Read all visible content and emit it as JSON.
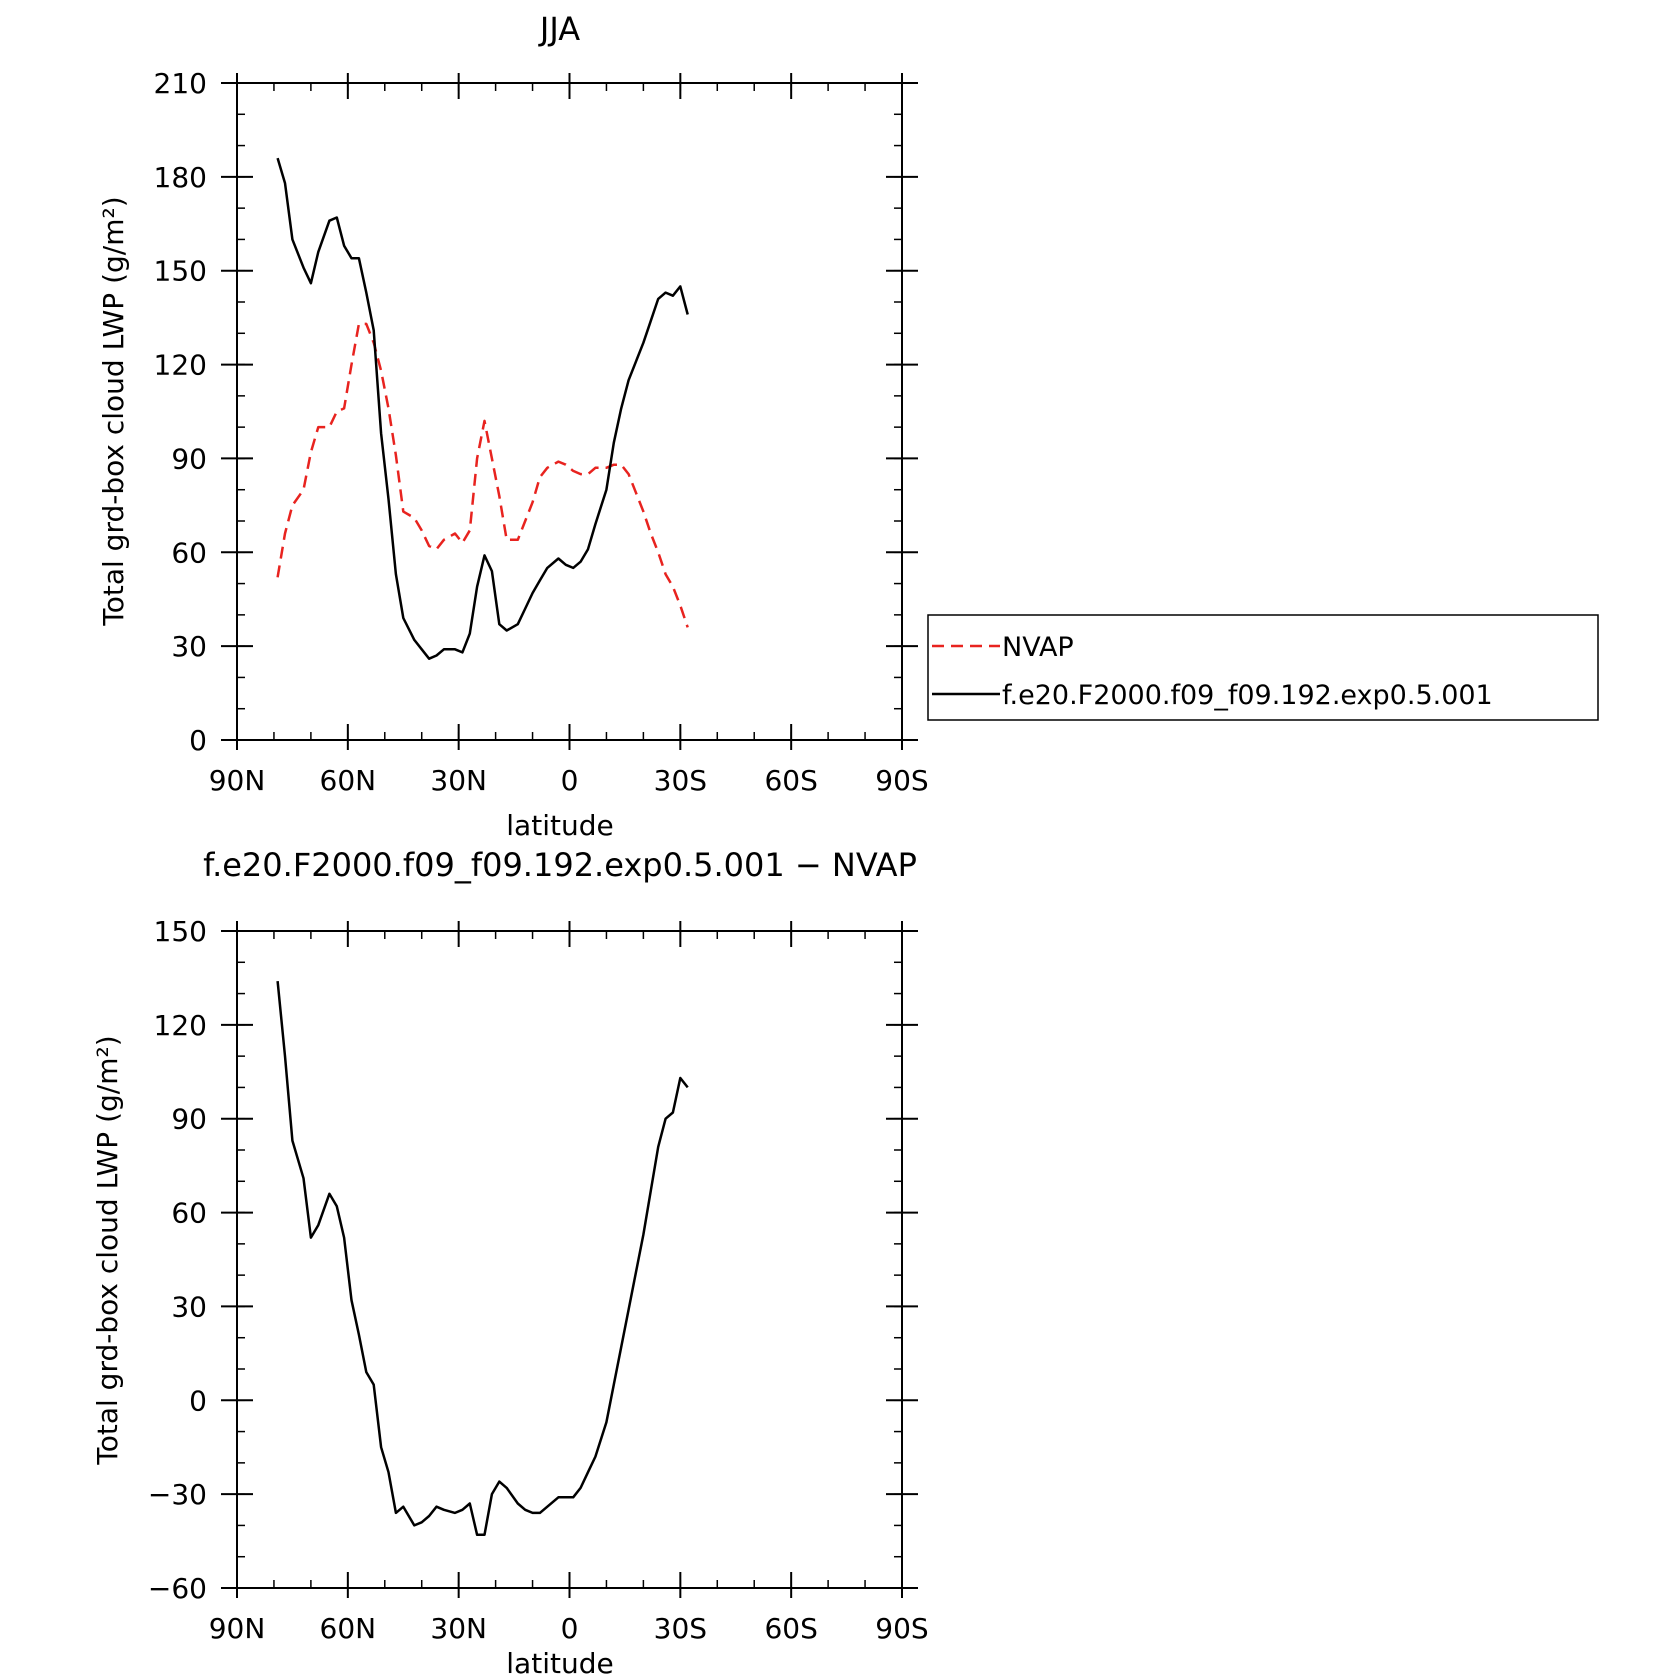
{
  "chart_data": [
    {
      "type": "line",
      "title": "JJA",
      "xlabel": "latitude",
      "ylabel": "Total grd-box cloud LWP (g/m²)",
      "xlim": [
        90,
        -90
      ],
      "ylim": [
        0,
        210
      ],
      "xticks": [
        {
          "value": 90,
          "label": "90N"
        },
        {
          "value": 60,
          "label": "60N"
        },
        {
          "value": 30,
          "label": "30N"
        },
        {
          "value": 0,
          "label": "0"
        },
        {
          "value": -30,
          "label": "30S"
        },
        {
          "value": -60,
          "label": "60S"
        },
        {
          "value": -90,
          "label": "90S"
        }
      ],
      "yticks": [
        {
          "value": 0,
          "label": "0"
        },
        {
          "value": 30,
          "label": "30"
        },
        {
          "value": 60,
          "label": "60"
        },
        {
          "value": 90,
          "label": "90"
        },
        {
          "value": 120,
          "label": "120"
        },
        {
          "value": 150,
          "label": "150"
        },
        {
          "value": 180,
          "label": "180"
        },
        {
          "value": 210,
          "label": "210"
        }
      ],
      "legend": {
        "placement": "right"
      },
      "series": [
        {
          "name": "NVAP",
          "color": "#e8231f",
          "dash": true,
          "points": [
            [
              79,
              52
            ],
            [
              77,
              66
            ],
            [
              75,
              75
            ],
            [
              72,
              80
            ],
            [
              70,
              92
            ],
            [
              68,
              100
            ],
            [
              65,
              100
            ],
            [
              63,
              105
            ],
            [
              61,
              106
            ],
            [
              59,
              120
            ],
            [
              57,
              133
            ],
            [
              55,
              133
            ],
            [
              53,
              127
            ],
            [
              51,
              118
            ],
            [
              49,
              106
            ],
            [
              47,
              91
            ],
            [
              45,
              73
            ],
            [
              42,
              71
            ],
            [
              40,
              67
            ],
            [
              38,
              62
            ],
            [
              36,
              61
            ],
            [
              34,
              64
            ],
            [
              31,
              66
            ],
            [
              29,
              63
            ],
            [
              27,
              67
            ],
            [
              25,
              90
            ],
            [
              23,
              102
            ],
            [
              21,
              90
            ],
            [
              19,
              78
            ],
            [
              17,
              64
            ],
            [
              14,
              64
            ],
            [
              12,
              70
            ],
            [
              10,
              76
            ],
            [
              8,
              84
            ],
            [
              6,
              87
            ],
            [
              3,
              89
            ],
            [
              1,
              88
            ],
            [
              -1,
              86
            ],
            [
              -3,
              85
            ],
            [
              -5,
              85
            ],
            [
              -7,
              87
            ],
            [
              -10,
              87
            ],
            [
              -12,
              88
            ],
            [
              -14,
              88
            ],
            [
              -16,
              85
            ],
            [
              -18,
              79
            ],
            [
              -20,
              73
            ],
            [
              -22,
              66
            ],
            [
              -24,
              60
            ],
            [
              -26,
              53
            ],
            [
              -28,
              49
            ],
            [
              -30,
              43
            ],
            [
              -32,
              36
            ]
          ]
        },
        {
          "name": "f.e20.F2000.f09_f09.192.exp0.5.001",
          "color": "#000000",
          "dash": false,
          "points": [
            [
              79,
              186
            ],
            [
              77,
              178
            ],
            [
              75,
              160
            ],
            [
              72,
              151
            ],
            [
              70,
              146
            ],
            [
              68,
              156
            ],
            [
              65,
              166
            ],
            [
              63,
              167
            ],
            [
              61,
              158
            ],
            [
              59,
              154
            ],
            [
              57,
              154
            ],
            [
              55,
              143
            ],
            [
              53,
              131
            ],
            [
              51,
              98
            ],
            [
              49,
              77
            ],
            [
              47,
              53
            ],
            [
              45,
              39
            ],
            [
              42,
              32
            ],
            [
              40,
              29
            ],
            [
              38,
              26
            ],
            [
              36,
              27
            ],
            [
              34,
              29
            ],
            [
              31,
              29
            ],
            [
              29,
              28
            ],
            [
              27,
              34
            ],
            [
              25,
              49
            ],
            [
              23,
              59
            ],
            [
              21,
              54
            ],
            [
              19,
              37
            ],
            [
              17,
              35
            ],
            [
              14,
              37
            ],
            [
              12,
              42
            ],
            [
              10,
              47
            ],
            [
              8,
              51
            ],
            [
              6,
              55
            ],
            [
              3,
              58
            ],
            [
              1,
              56
            ],
            [
              -1,
              55
            ],
            [
              -3,
              57
            ],
            [
              -5,
              61
            ],
            [
              -7,
              69
            ],
            [
              -10,
              80
            ],
            [
              -12,
              95
            ],
            [
              -14,
              106
            ],
            [
              -16,
              115
            ],
            [
              -18,
              121
            ],
            [
              -20,
              127
            ],
            [
              -22,
              134
            ],
            [
              -24,
              141
            ],
            [
              -26,
              143
            ],
            [
              -28,
              142
            ],
            [
              -30,
              145
            ],
            [
              -32,
              136
            ]
          ]
        }
      ]
    },
    {
      "type": "line",
      "title": "f.e20.F2000.f09_f09.192.exp0.5.001 − NVAP",
      "xlabel": "latitude",
      "ylabel": "Total grd-box cloud LWP (g/m²)",
      "xlim": [
        90,
        -90
      ],
      "ylim": [
        -60,
        150
      ],
      "xticks": [
        {
          "value": 90,
          "label": "90N"
        },
        {
          "value": 60,
          "label": "60N"
        },
        {
          "value": 30,
          "label": "30N"
        },
        {
          "value": 0,
          "label": "0"
        },
        {
          "value": -30,
          "label": "30S"
        },
        {
          "value": -60,
          "label": "60S"
        },
        {
          "value": -90,
          "label": "90S"
        }
      ],
      "yticks": [
        {
          "value": -60,
          "label": "−60"
        },
        {
          "value": -30,
          "label": "−30"
        },
        {
          "value": 0,
          "label": "0"
        },
        {
          "value": 30,
          "label": "30"
        },
        {
          "value": 60,
          "label": "60"
        },
        {
          "value": 90,
          "label": "90"
        },
        {
          "value": 120,
          "label": "120"
        },
        {
          "value": 150,
          "label": "150"
        }
      ],
      "series": [
        {
          "color": "#000000",
          "dash": false,
          "points": [
            [
              79,
              134
            ],
            [
              77,
              110
            ],
            [
              75,
              83
            ],
            [
              72,
              71
            ],
            [
              70,
              52
            ],
            [
              68,
              56
            ],
            [
              65,
              66
            ],
            [
              63,
              62
            ],
            [
              61,
              52
            ],
            [
              59,
              32
            ],
            [
              57,
              21
            ],
            [
              55,
              9
            ],
            [
              53,
              5
            ],
            [
              51,
              -15
            ],
            [
              49,
              -23
            ],
            [
              47,
              -36
            ],
            [
              45,
              -34
            ],
            [
              42,
              -40
            ],
            [
              40,
              -39
            ],
            [
              38,
              -37
            ],
            [
              36,
              -34
            ],
            [
              34,
              -35
            ],
            [
              31,
              -36
            ],
            [
              29,
              -35
            ],
            [
              27,
              -33
            ],
            [
              25,
              -43
            ],
            [
              23,
              -43
            ],
            [
              21,
              -30
            ],
            [
              19,
              -26
            ],
            [
              17,
              -28
            ],
            [
              14,
              -33
            ],
            [
              12,
              -35
            ],
            [
              10,
              -36
            ],
            [
              8,
              -36
            ],
            [
              6,
              -34
            ],
            [
              3,
              -31
            ],
            [
              1,
              -31
            ],
            [
              -1,
              -31
            ],
            [
              -3,
              -28
            ],
            [
              -5,
              -23
            ],
            [
              -7,
              -18
            ],
            [
              -10,
              -7
            ],
            [
              -12,
              5
            ],
            [
              -14,
              17
            ],
            [
              -16,
              29
            ],
            [
              -18,
              41
            ],
            [
              -20,
              53
            ],
            [
              -22,
              67
            ],
            [
              -24,
              81
            ],
            [
              -26,
              90
            ],
            [
              -28,
              92
            ],
            [
              -30,
              103
            ],
            [
              -32,
              100
            ]
          ]
        }
      ]
    }
  ]
}
